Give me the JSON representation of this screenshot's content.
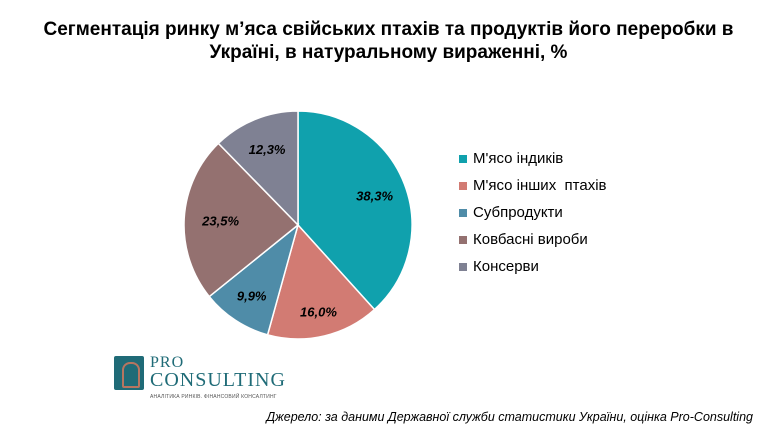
{
  "title_line1": "Сегментація ринку м’яса свійських птахів та продуктів його переробки  в",
  "title_line2": "Україні, в натуральному вираженні, %",
  "chart_data": {
    "type": "pie",
    "slices": [
      {
        "name": "М'ясо індиків",
        "value": 38.3,
        "label": "38,3%",
        "color": "#10a1ad"
      },
      {
        "name": "М'ясо інших  птахів",
        "value": 16.0,
        "label": "16,0%",
        "color": "#d27b73"
      },
      {
        "name": "Субпродукти",
        "value": 9.9,
        "label": "9,9%",
        "color": "#4f8ca8"
      },
      {
        "name": "Ковбасні вироби",
        "value": 23.5,
        "label": "23,5%",
        "color": "#947170"
      },
      {
        "name": "Консерви",
        "value": 12.3,
        "label": "12,3%",
        "color": "#7f8193"
      }
    ]
  },
  "logo": {
    "pro": "PRO",
    "consulting": "CONSULTING",
    "tagline": "АНАЛІТИКА РИНКІВ. ФІНАНСОВИЙ КОНСАЛТИНГ"
  },
  "source": "Джерело: за даними Державної служби статистики України, оцінка Pro-Consulting"
}
